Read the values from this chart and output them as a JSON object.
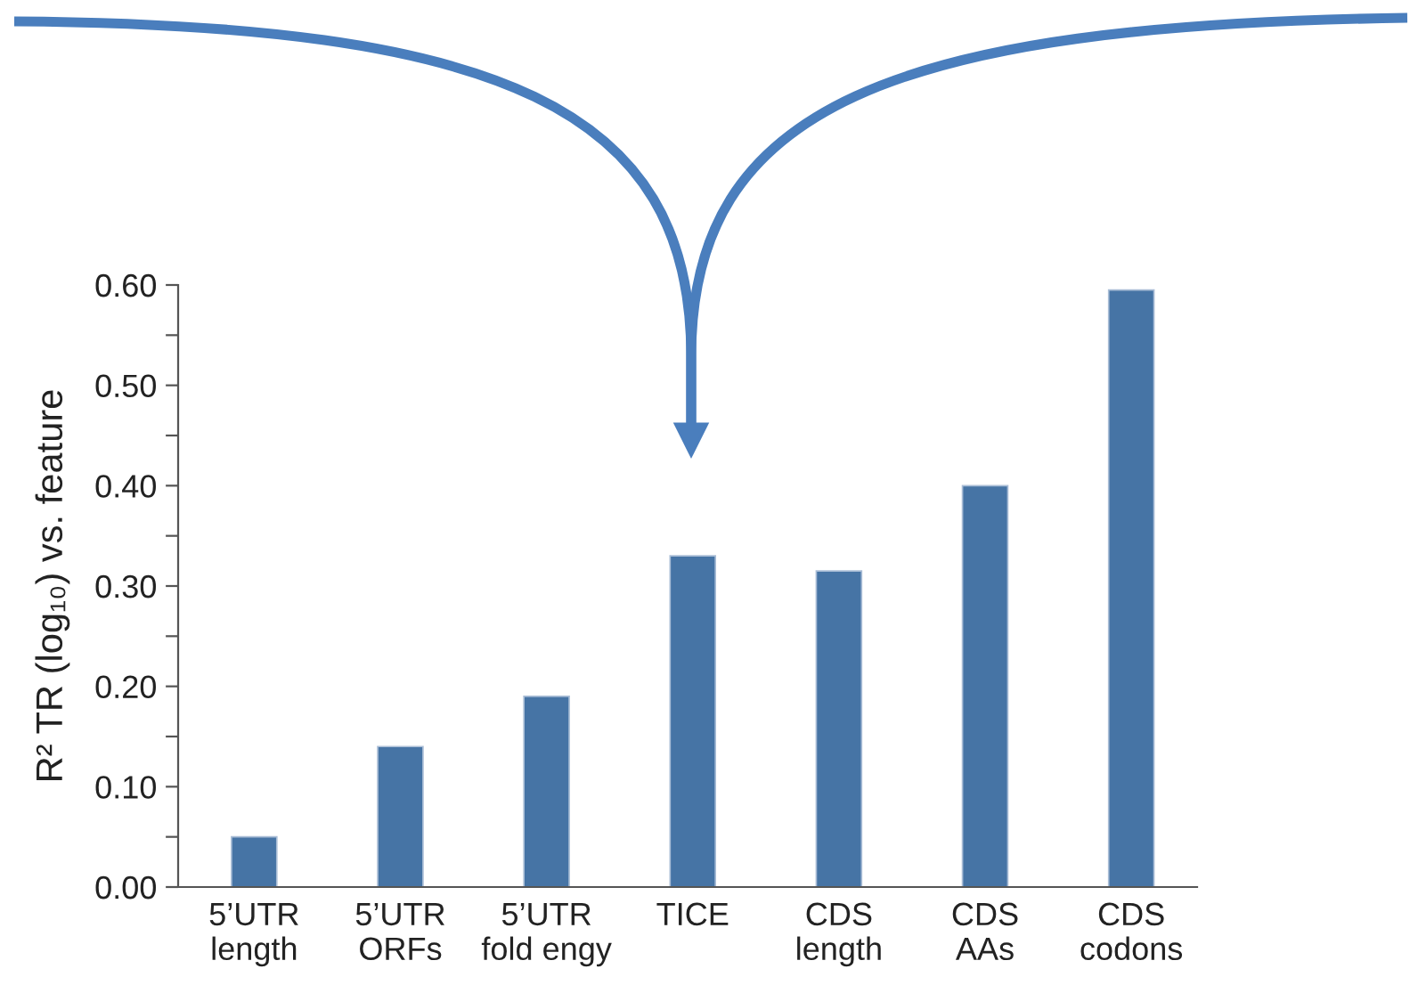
{
  "chart_data": {
    "type": "bar",
    "ylabel": "R² TR (log₁₀) vs. feature",
    "categories": [
      "5’UTR\nlength",
      "5’UTR\nORFs",
      "5’UTR\nfold engy",
      "TICE",
      "CDS\nlength",
      "CDS\nAAs",
      "CDS\ncodons"
    ],
    "values": [
      0.05,
      0.14,
      0.19,
      0.33,
      0.315,
      0.4,
      0.595
    ],
    "color": "#4674a5",
    "ylim": [
      0,
      0.6
    ],
    "yticks": [
      {
        "value": 0,
        "label": "0.00"
      },
      {
        "value": 0.05,
        "label": null
      },
      {
        "value": 0.1,
        "label": "0.10"
      },
      {
        "value": 0.15,
        "label": null
      },
      {
        "value": 0.2,
        "label": "0.20"
      },
      {
        "value": 0.25,
        "label": null
      },
      {
        "value": 0.3,
        "label": "0.30"
      },
      {
        "value": 0.35,
        "label": null
      },
      {
        "value": 0.4,
        "label": "0.40"
      },
      {
        "value": 0.45,
        "label": null
      },
      {
        "value": 0.5,
        "label": "0.50"
      },
      {
        "value": 0.55,
        "label": null
      },
      {
        "value": 0.6,
        "label": "0.60"
      }
    ],
    "grid": false,
    "legend": false
  }
}
